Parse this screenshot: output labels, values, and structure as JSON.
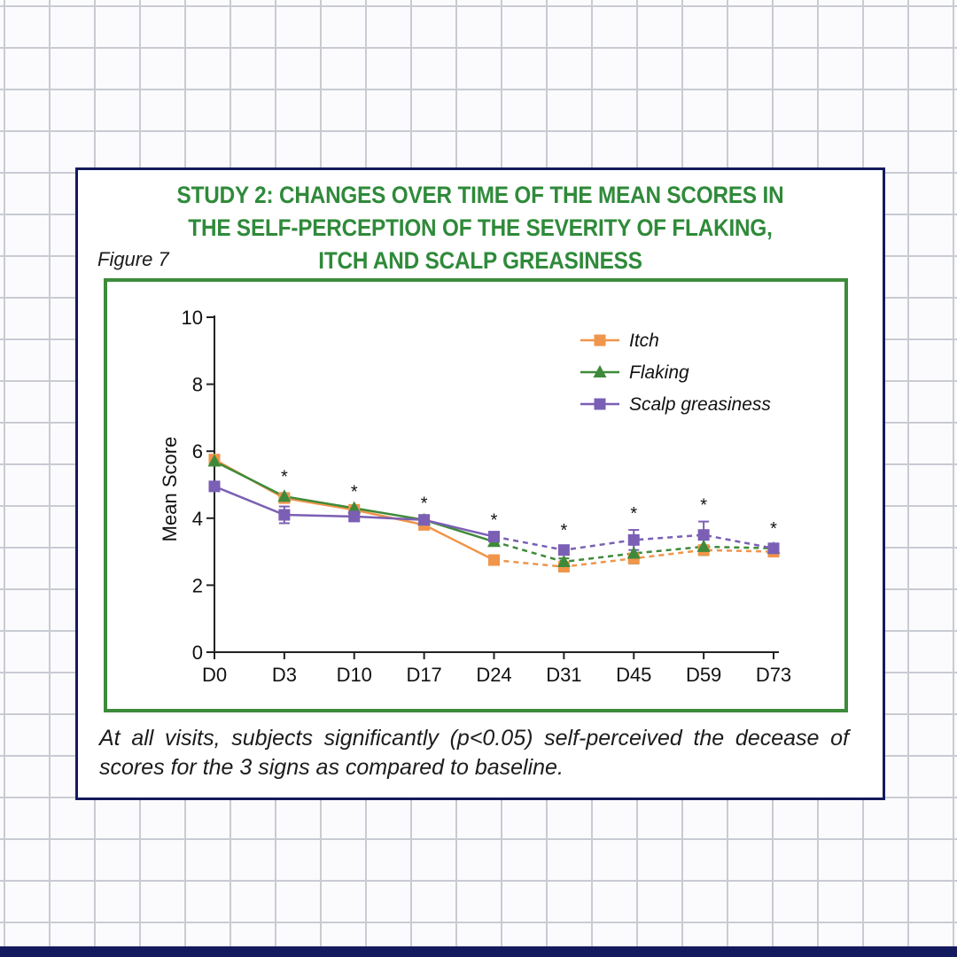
{
  "card": {
    "title_lines": [
      "STUDY 2: CHANGES OVER TIME OF THE MEAN SCORES IN",
      "THE SELF-PERCEPTION OF THE SEVERITY OF FLAKING,",
      "ITCH AND SCALP GREASINESS"
    ],
    "figure_label": "Figure 7",
    "caption": "At all visits, subjects significantly (p<0.05) self-perceived the decease of scores for the 3 signs as compared to baseline."
  },
  "colors": {
    "title": "#2f8a3a",
    "frame": "#3d8b3a",
    "border": "#141a5e",
    "itch": "#f0954a",
    "flaking": "#3f8a3a",
    "scalp_greasiness": "#7b5fb5"
  },
  "chart_data": {
    "type": "line",
    "categories": [
      "D0",
      "D3",
      "D10",
      "D17",
      "D24",
      "D31",
      "D45",
      "D59",
      "D73"
    ],
    "ylabel": "Mean Score",
    "xlabel": "",
    "ylim": [
      0,
      10
    ],
    "yticks": [
      0,
      2,
      4,
      6,
      8,
      10
    ],
    "legend_position": "top-right",
    "solid_until_index": 4,
    "significance_marker": "*",
    "significant_indices": [
      1,
      2,
      3,
      4,
      5,
      6,
      7,
      8
    ],
    "series": [
      {
        "name": "Itch",
        "marker": "square",
        "color": "#f0954a",
        "values": [
          5.75,
          4.6,
          4.25,
          3.8,
          2.75,
          2.55,
          2.8,
          3.05,
          3.0
        ],
        "errors": [
          0,
          0,
          0,
          0,
          0,
          0,
          0,
          0,
          0
        ]
      },
      {
        "name": "Flaking",
        "marker": "triangle",
        "color": "#3f8a3a",
        "values": [
          5.7,
          4.65,
          4.3,
          3.95,
          3.3,
          2.7,
          2.95,
          3.15,
          3.1
        ],
        "errors": [
          0,
          0.1,
          0,
          0,
          0,
          0.1,
          0.3,
          0.25,
          0.1
        ]
      },
      {
        "name": "Scalp greasiness",
        "marker": "square",
        "color": "#7b5fb5",
        "values": [
          4.95,
          4.1,
          4.05,
          3.95,
          3.45,
          3.05,
          3.35,
          3.5,
          3.1
        ],
        "errors": [
          0,
          0.25,
          0,
          0,
          0,
          0.1,
          0.3,
          0.4,
          0.1
        ]
      }
    ]
  }
}
